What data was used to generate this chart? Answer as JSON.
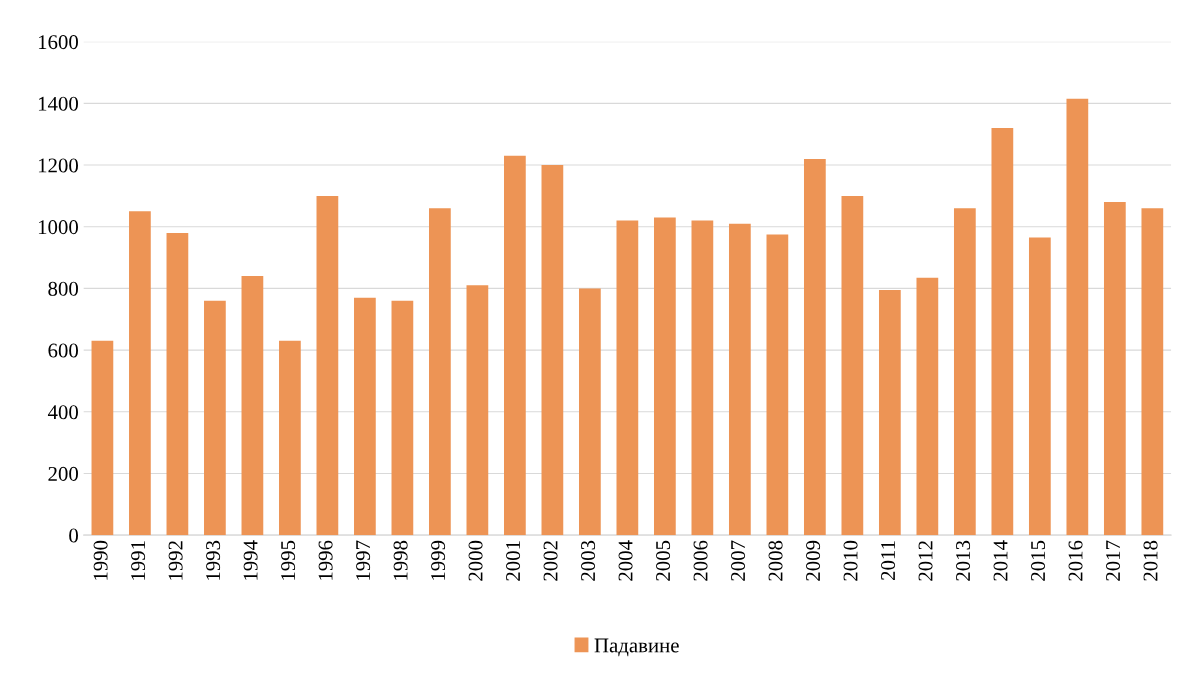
{
  "chart_data": {
    "type": "bar",
    "categories": [
      "1990",
      "1991",
      "1992",
      "1993",
      "1994",
      "1995",
      "1996",
      "1997",
      "1998",
      "1999",
      "2000",
      "2001",
      "2002",
      "2003",
      "2004",
      "2005",
      "2006",
      "2007",
      "2008",
      "2009",
      "2010",
      "2011",
      "2012",
      "2013",
      "2014",
      "2015",
      "2016",
      "2017",
      "2018"
    ],
    "series": [
      {
        "name": "Падавине",
        "color": "#ed9455",
        "values": [
          630,
          1050,
          980,
          760,
          840,
          630,
          1100,
          770,
          760,
          1060,
          810,
          1230,
          1200,
          800,
          1020,
          1030,
          1020,
          1010,
          975,
          1220,
          1100,
          795,
          835,
          1060,
          1320,
          965,
          1415,
          1080,
          1060
        ]
      }
    ],
    "ylim": [
      0,
      1600
    ],
    "yticks": [
      0,
      200,
      400,
      600,
      800,
      1000,
      1200,
      1400,
      1600
    ],
    "grid": "y",
    "legend": "bottom"
  }
}
